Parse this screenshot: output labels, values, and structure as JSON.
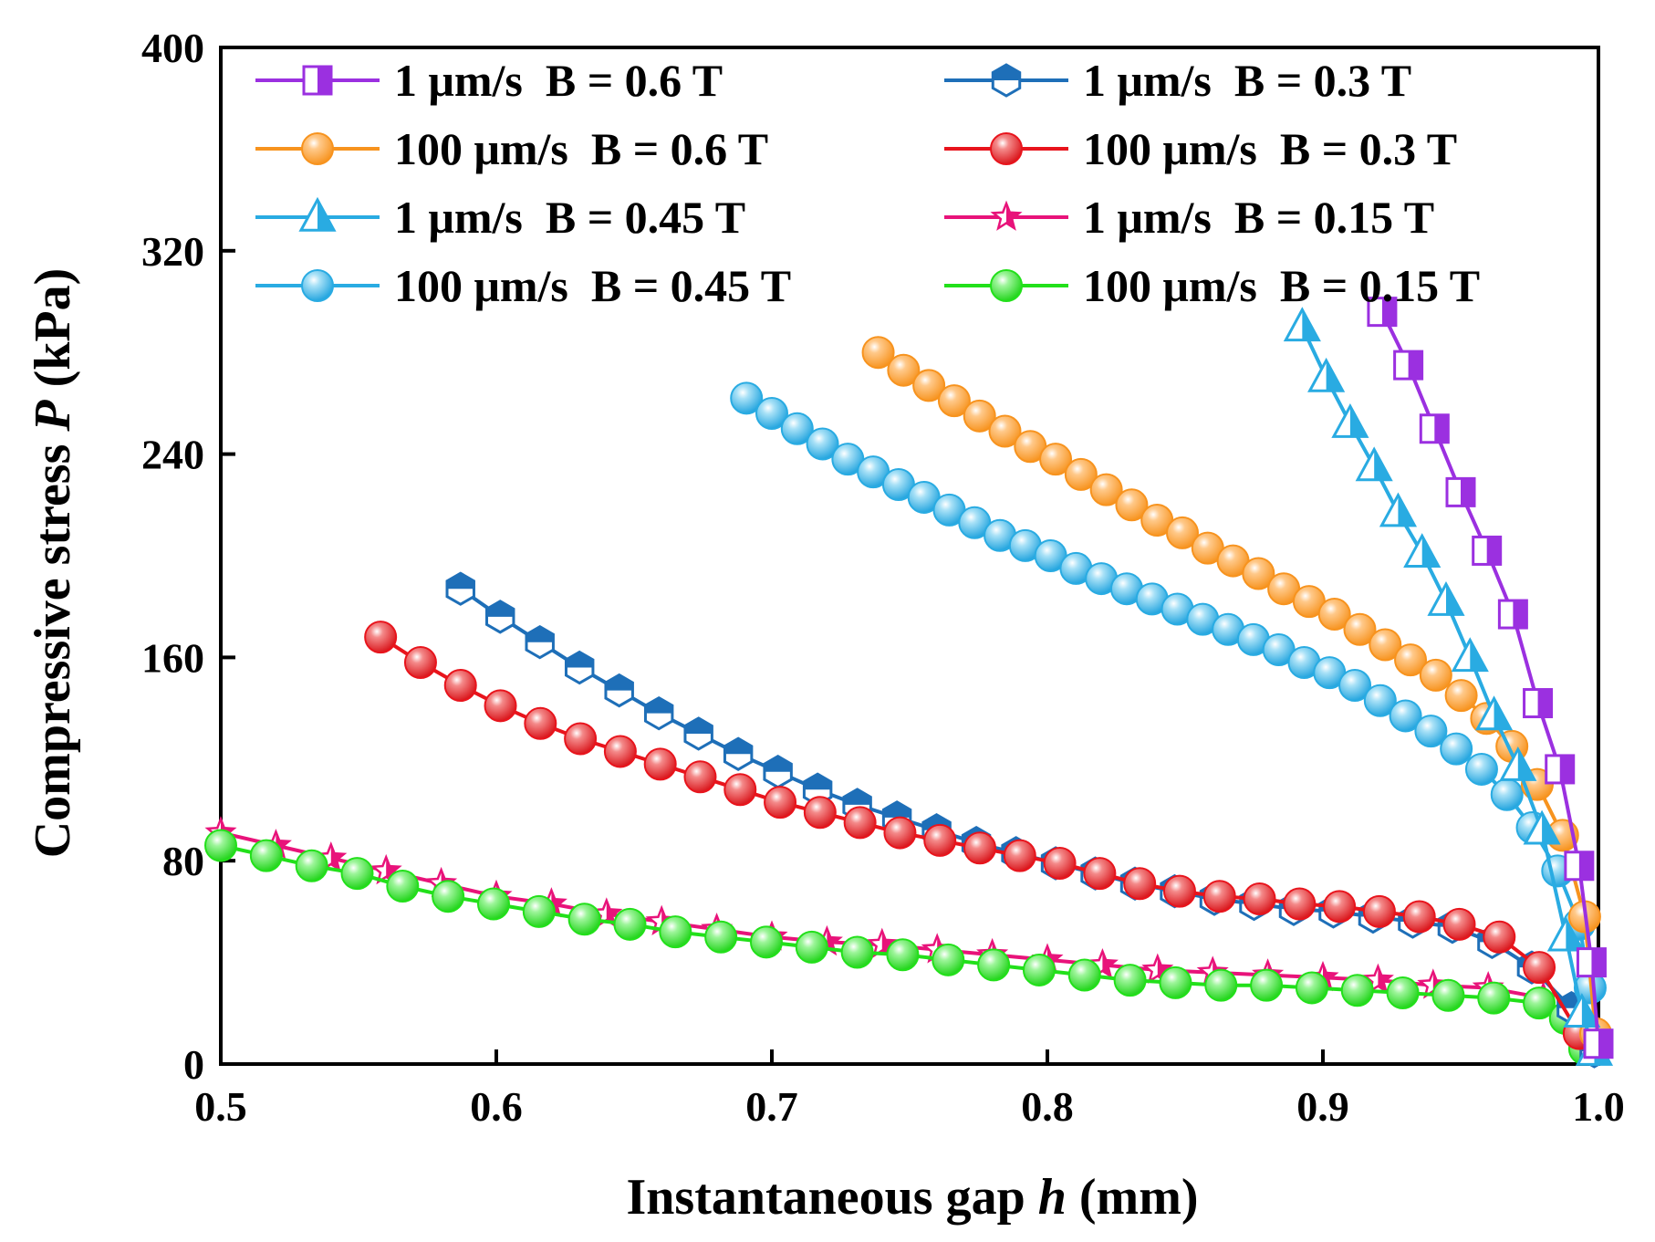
{
  "chart_data": {
    "type": "line",
    "title": "",
    "xlabel": "Instantaneous gap",
    "xlabel_var": "h",
    "xlabel_unit": "(mm)",
    "ylabel": "Compressive stress",
    "ylabel_var": "P",
    "ylabel_unit": "(kPa)",
    "xlim": [
      0.5,
      1.0
    ],
    "ylim": [
      0,
      400
    ],
    "xticks": [
      0.5,
      0.6,
      0.7,
      0.8,
      0.9,
      1.0
    ],
    "xtick_labels": [
      "0.5",
      "0.6",
      "0.7",
      "0.8",
      "0.9",
      "1.0"
    ],
    "yticks": [
      0,
      80,
      160,
      240,
      320,
      400
    ],
    "ytick_labels": [
      "0",
      "80",
      "160",
      "240",
      "320",
      "400"
    ],
    "grid": false,
    "legend_position": "top",
    "series": [
      {
        "name": "1 μm/s  B = 0.6 T",
        "color": "#9B30E0",
        "marker": "square-half",
        "x": [
          0.9215,
          0.931,
          0.9405,
          0.95,
          0.9595,
          0.969,
          0.978,
          0.986,
          0.993,
          0.9975,
          1.0
        ],
        "y": [
          296,
          275,
          250,
          225,
          202,
          177,
          142,
          116,
          78,
          40,
          8
        ]
      },
      {
        "name": "100 μm/s  B = 0.6 T",
        "color": "#F7931E",
        "marker": "sphere",
        "x": [
          0.7386,
          0.7478,
          0.757,
          0.7662,
          0.7754,
          0.7846,
          0.7938,
          0.803,
          0.8122,
          0.8214,
          0.8306,
          0.8398,
          0.849,
          0.8582,
          0.8674,
          0.8766,
          0.8858,
          0.895,
          0.9042,
          0.9134,
          0.9226,
          0.9318,
          0.941,
          0.9502,
          0.9594,
          0.9686,
          0.9778,
          0.987,
          0.995,
          0.999
        ],
        "y": [
          280,
          273,
          267,
          261,
          255,
          249,
          243,
          238,
          232,
          226,
          220,
          214,
          209,
          203,
          198,
          193,
          187,
          182,
          177,
          171,
          165,
          159,
          153,
          145,
          136,
          125,
          110,
          90,
          58,
          12
        ]
      },
      {
        "name": "1 μm/s  B = 0.45 T",
        "color": "#29ABE2",
        "marker": "triangle-half",
        "x": [
          0.8925,
          0.9012,
          0.9099,
          0.9186,
          0.9273,
          0.936,
          0.9447,
          0.9534,
          0.9621,
          0.9708,
          0.9795,
          0.9882,
          0.994,
          0.9985
        ],
        "y": [
          290,
          270,
          252,
          235,
          217,
          201,
          182,
          160,
          137,
          117,
          92,
          50,
          20,
          5
        ]
      },
      {
        "name": "100 μm/s  B = 0.45 T",
        "color": "#29ABE2",
        "marker": "sphere",
        "x": [
          0.6908,
          0.7,
          0.7092,
          0.7184,
          0.7276,
          0.7368,
          0.746,
          0.7552,
          0.7644,
          0.7736,
          0.7828,
          0.792,
          0.8012,
          0.8104,
          0.8196,
          0.8288,
          0.838,
          0.8472,
          0.8564,
          0.8656,
          0.8748,
          0.884,
          0.8932,
          0.9024,
          0.9116,
          0.9208,
          0.93,
          0.9392,
          0.9484,
          0.9576,
          0.9668,
          0.976,
          0.9852,
          0.993,
          0.997
        ],
        "y": [
          262,
          256,
          250,
          244,
          238,
          233,
          228,
          223,
          218,
          213,
          208,
          204,
          200,
          195,
          191,
          187,
          183,
          179,
          175,
          171,
          167,
          163,
          158,
          154,
          149,
          143,
          137,
          131,
          124,
          116,
          106,
          93,
          76,
          55,
          30
        ]
      },
      {
        "name": "1 μm/s  B = 0.3 T",
        "color": "#1E6FB8",
        "marker": "hexagon-half",
        "x": [
          0.587,
          0.6014,
          0.6158,
          0.6302,
          0.6446,
          0.659,
          0.6734,
          0.6878,
          0.7022,
          0.7166,
          0.731,
          0.7454,
          0.7598,
          0.7742,
          0.7886,
          0.803,
          0.8174,
          0.8318,
          0.8462,
          0.8606,
          0.875,
          0.8894,
          0.9038,
          0.9182,
          0.9326,
          0.947,
          0.9614,
          0.9758,
          0.9902,
          0.9985
        ],
        "y": [
          187,
          176,
          166,
          156,
          147,
          138,
          130,
          122,
          115,
          108,
          102,
          97,
          92,
          87,
          83,
          79,
          75,
          71,
          68,
          65,
          63,
          61,
          60,
          58,
          56,
          54,
          48,
          38,
          22,
          5
        ]
      },
      {
        "name": "100 μm/s  B = 0.3 T",
        "color": "#E8141C",
        "marker": "sphere",
        "x": [
          0.558,
          0.5725,
          0.587,
          0.6015,
          0.616,
          0.6305,
          0.645,
          0.6595,
          0.674,
          0.6885,
          0.703,
          0.7175,
          0.732,
          0.7465,
          0.761,
          0.7755,
          0.79,
          0.8045,
          0.819,
          0.8335,
          0.848,
          0.8625,
          0.877,
          0.8915,
          0.906,
          0.9205,
          0.935,
          0.9495,
          0.964,
          0.9785,
          0.993
        ],
        "y": [
          168,
          158,
          149,
          141,
          134,
          128,
          123,
          118,
          113,
          108,
          103,
          99,
          95,
          91,
          88,
          85,
          82,
          79,
          75,
          71,
          68,
          66,
          65,
          63,
          62,
          60,
          58,
          55,
          50,
          38,
          12
        ]
      },
      {
        "name": "1 μm/s  B = 0.15 T",
        "color": "#E8137A",
        "marker": "star",
        "x": [
          0.5,
          0.52,
          0.54,
          0.56,
          0.58,
          0.6,
          0.62,
          0.64,
          0.66,
          0.68,
          0.7,
          0.72,
          0.74,
          0.76,
          0.78,
          0.8,
          0.82,
          0.84,
          0.86,
          0.88,
          0.9,
          0.92,
          0.94,
          0.96,
          0.98,
          0.995
        ],
        "y": [
          91,
          86,
          81,
          76,
          71,
          66,
          63,
          59,
          56,
          53,
          50,
          48,
          47,
          45,
          43,
          41,
          39,
          37,
          36,
          35,
          34,
          33,
          31,
          30,
          26,
          10
        ]
      },
      {
        "name": "100 μm/s  B = 0.15 T",
        "color": "#22E01A",
        "marker": "sphere",
        "x": [
          0.5,
          0.5165,
          0.533,
          0.5495,
          0.566,
          0.5825,
          0.599,
          0.6155,
          0.632,
          0.6485,
          0.665,
          0.6815,
          0.698,
          0.7145,
          0.731,
          0.7475,
          0.764,
          0.7805,
          0.797,
          0.8135,
          0.83,
          0.8465,
          0.863,
          0.8795,
          0.896,
          0.9125,
          0.929,
          0.9455,
          0.962,
          0.9785,
          0.988,
          0.995
        ],
        "y": [
          86,
          82,
          78,
          75,
          70,
          66,
          63,
          60,
          57,
          55,
          52,
          50,
          48,
          46,
          44,
          43,
          41,
          39,
          37,
          35,
          33,
          32,
          31,
          31,
          30,
          29,
          28,
          27,
          26,
          24,
          18,
          6
        ]
      }
    ]
  }
}
